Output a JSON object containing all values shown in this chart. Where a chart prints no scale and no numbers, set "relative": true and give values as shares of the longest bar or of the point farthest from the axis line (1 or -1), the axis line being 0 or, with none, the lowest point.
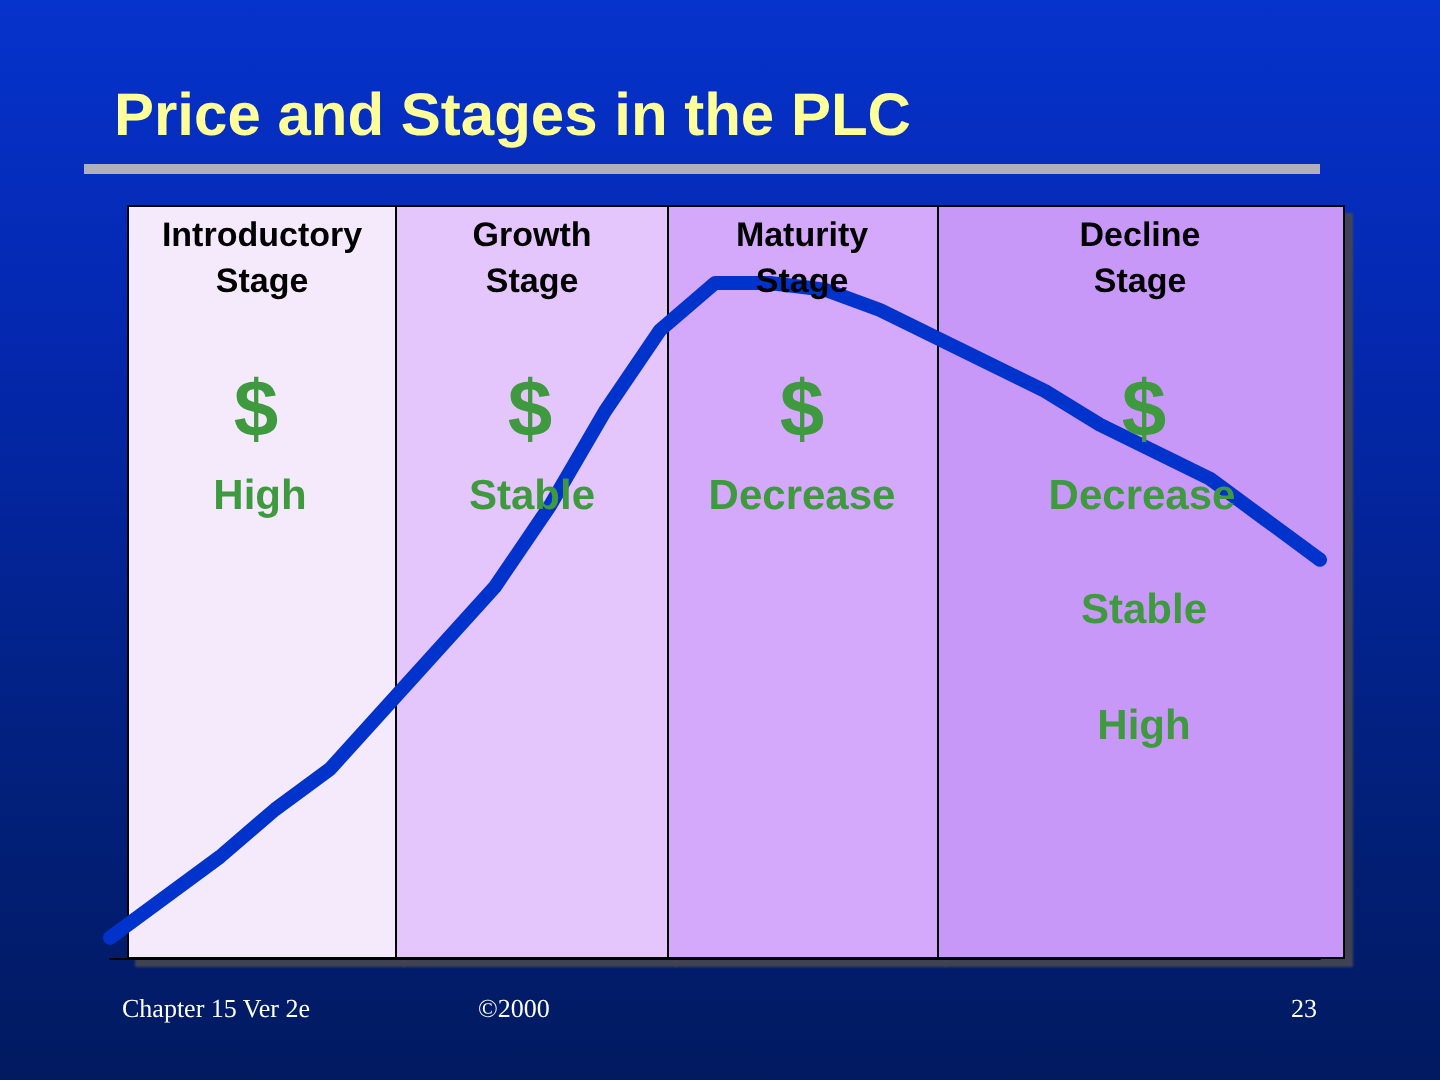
{
  "chart_data": {
    "type": "line",
    "title": "Price and Stages in the PLC",
    "relative": true,
    "categories": [
      null,
      null,
      null,
      null,
      null,
      null,
      null,
      null,
      null,
      null,
      null,
      null,
      null,
      null,
      null,
      null,
      null,
      null,
      null,
      null,
      null,
      null,
      null
    ],
    "series": [
      {
        "color": "#0033cc",
        "values": [
          0.03,
          0.09,
          0.15,
          0.22,
          0.28,
          0.37,
          0.46,
          0.55,
          0.67,
          0.81,
          0.93,
          1,
          1,
          0.99,
          0.96,
          0.92,
          0.88,
          0.84,
          0.79,
          0.75,
          0.71,
          0.65,
          0.59
        ]
      }
    ],
    "annotations": [
      "Introductory Stage",
      "Growth Stage",
      "Maturity Stage",
      "Decline Stage",
      "$",
      "High",
      "$",
      "Stable",
      "$",
      "Decrease",
      "$",
      "Decrease",
      "Stable",
      "High",
      "Chapter 15 Ver 2e",
      "©2000",
      "23"
    ]
  }
}
